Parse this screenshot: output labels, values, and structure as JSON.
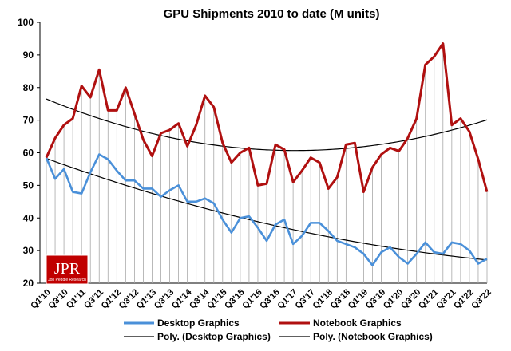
{
  "chart_data": {
    "type": "line",
    "title": "GPU Shipments 2010 to date (M units)",
    "ylim": [
      20,
      100
    ],
    "yticks": [
      20,
      30,
      40,
      50,
      60,
      70,
      80,
      90,
      100
    ],
    "grid": "vertical drop lines at each quarter",
    "categories": [
      "Q1'10",
      "Q2'10",
      "Q3'10",
      "Q4'10",
      "Q1'11",
      "Q2'11",
      "Q3'11",
      "Q4'11",
      "Q1'12",
      "Q2'12",
      "Q3'12",
      "Q4'12",
      "Q1'13",
      "Q2'13",
      "Q3'13",
      "Q4'13",
      "Q1'14",
      "Q2'14",
      "Q3'14",
      "Q4'14",
      "Q1'15",
      "Q2'15",
      "Q3'15",
      "Q4'15",
      "Q1'16",
      "Q2'16",
      "Q3'16",
      "Q4'16",
      "Q1'17",
      "Q2'17",
      "Q3'17",
      "Q4'17",
      "Q1'18",
      "Q2'18",
      "Q3'18",
      "Q4'18",
      "Q1'19",
      "Q2'19",
      "Q3'19",
      "Q4'19",
      "Q1'20",
      "Q2'20",
      "Q3'20",
      "Q4'20",
      "Q1'21",
      "Q2'21",
      "Q3'21",
      "Q4'21",
      "Q1'22",
      "Q2'22",
      "Q3'22"
    ],
    "tick_labels": [
      "Q1'10",
      "Q3'10",
      "Q1'11",
      "Q3'11",
      "Q1'12",
      "Q3'12",
      "Q1'13",
      "Q3'13",
      "Q1'14",
      "Q3'14",
      "Q1'15",
      "Q3'15",
      "Q1'16",
      "Q3'16",
      "Q1'17",
      "Q3'17",
      "Q1'18",
      "Q3'18",
      "Q1'19",
      "Q3'19",
      "Q1'20",
      "Q3'20",
      "Q1'21",
      "Q3'21",
      "Q1'22",
      "Q3'22"
    ],
    "series": [
      {
        "name": "Desktop Graphics",
        "color": "#4a90d9",
        "values": [
          58.5,
          52,
          55,
          48,
          47.5,
          54,
          59.5,
          58,
          54.5,
          51.5,
          51.5,
          49,
          49,
          46.5,
          48.5,
          50,
          45,
          45,
          46,
          44.5,
          39.5,
          35.5,
          40,
          40.5,
          37,
          33,
          38,
          39.5,
          32,
          34.5,
          38.5,
          38.5,
          36,
          33,
          32,
          31,
          29,
          25.5,
          29.5,
          31,
          28,
          26,
          29,
          32.5,
          29.5,
          29,
          32.5,
          32,
          30,
          26,
          27.5
        ]
      },
      {
        "name": "Notebook Graphics",
        "color": "#b01010",
        "values": [
          58.5,
          64.5,
          68.5,
          70.5,
          80.5,
          77,
          85.5,
          73,
          73,
          80,
          72,
          64,
          59,
          66,
          67,
          69,
          62,
          68.5,
          77.5,
          74,
          63,
          57,
          60,
          61.5,
          50,
          50.5,
          62.5,
          61,
          51,
          54.5,
          58.5,
          57,
          49,
          52.5,
          62.5,
          63,
          48,
          55.5,
          59.5,
          61.5,
          60.5,
          64.5,
          70.5,
          87,
          89.5,
          93.5,
          68.5,
          70.5,
          66.5,
          58,
          48
        ]
      }
    ],
    "trendlines": [
      {
        "name": "Poly. (Desktop Graphics)",
        "color": "#000000",
        "type": "polynomial order 2 fit of Desktop Graphics"
      },
      {
        "name": "Poly. (Notebook Graphics)",
        "color": "#000000",
        "type": "polynomial order 2 fit of Notebook Graphics"
      }
    ],
    "legend": "bottom"
  },
  "logo": {
    "main": "JPR",
    "sub": "Jon Peddie Research",
    "bg_color": "#c00000"
  }
}
